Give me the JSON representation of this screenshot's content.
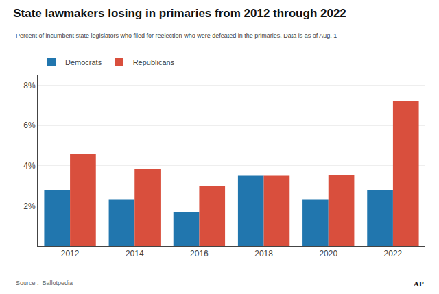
{
  "chart_data": {
    "type": "bar",
    "title": "State lawmakers losing in primaries from 2012 through 2022",
    "subtitle": "Percent of incumbent state legislators who filed for reelection who were defeated in the primaries. Data is as of Aug. 1",
    "annotations": [
      "Source :  Ballotpedia",
      "AP"
    ],
    "categories": [
      "2012",
      "2014",
      "2016",
      "2018",
      "2020",
      "2022"
    ],
    "series": [
      {
        "name": "Democrats",
        "color": "#2176ae",
        "values": [
          2.8,
          2.3,
          1.7,
          3.5,
          2.3,
          2.8
        ]
      },
      {
        "name": "Republicans",
        "color": "#d94f3d",
        "values": [
          4.6,
          3.85,
          3.0,
          3.5,
          3.55,
          7.2
        ]
      }
    ],
    "ylim": [
      0,
      8.5
    ],
    "yticks": [
      {
        "value": 2,
        "label": "2%"
      },
      {
        "value": 4,
        "label": "4%"
      },
      {
        "value": 6,
        "label": "6%"
      },
      {
        "value": 8,
        "label": "8%"
      }
    ],
    "grid": true,
    "legend": "top left"
  }
}
